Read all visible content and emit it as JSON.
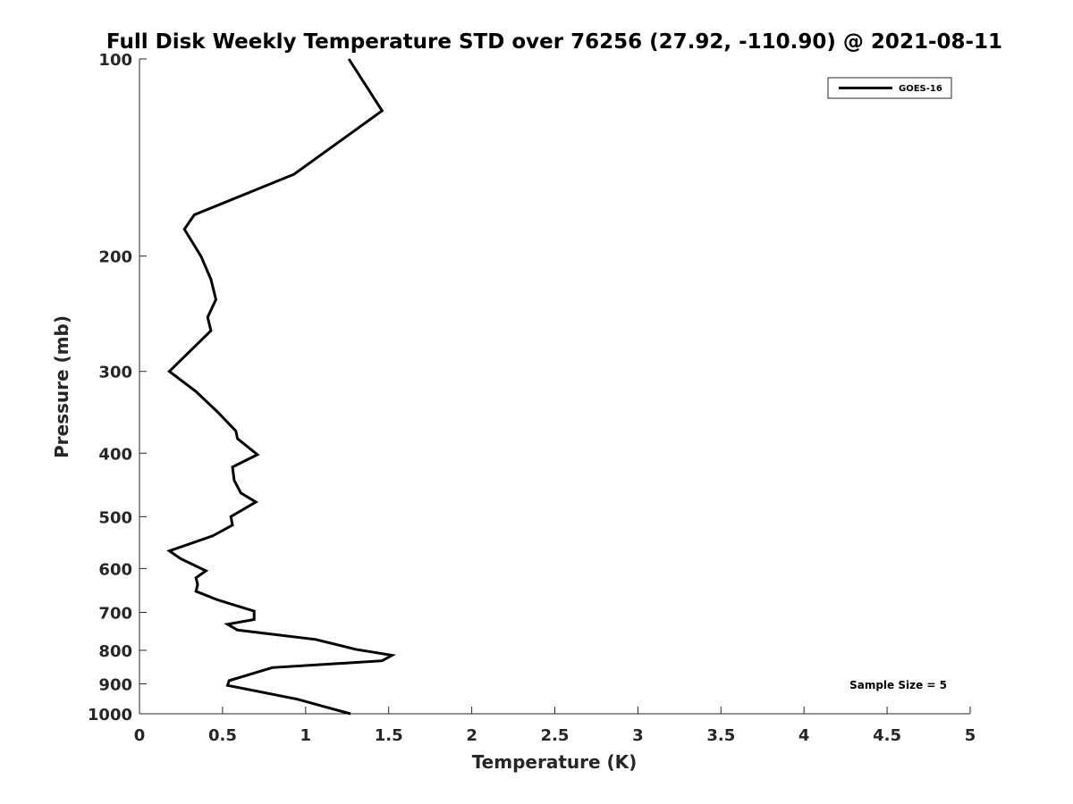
{
  "chart_data": {
    "type": "line",
    "title": "Full Disk Weekly Temperature STD over 76256 (27.92, -110.90) @ 2021-08-11",
    "xlabel": "Temperature (K)",
    "ylabel": "Pressure (mb)",
    "xlim": [
      0,
      5
    ],
    "ylim": [
      100,
      1000
    ],
    "y_scale": "log",
    "y_reversed": true,
    "x_ticks": [
      "0",
      "0.5",
      "1",
      "1.5",
      "2",
      "2.5",
      "3",
      "3.5",
      "4",
      "4.5",
      "5"
    ],
    "y_ticks": [
      "100",
      "200",
      "300",
      "400",
      "500",
      "600",
      "700",
      "800",
      "900",
      "1000"
    ],
    "legend_position": "top-right",
    "grid": false,
    "annotation": "Sample Size = 5",
    "series": [
      {
        "name": "GOES-16",
        "color": "#000000",
        "x": [
          1.26,
          1.46,
          0.93,
          0.33,
          0.27,
          0.37,
          0.43,
          0.46,
          0.41,
          0.43,
          0.18,
          0.34,
          0.47,
          0.58,
          0.59,
          0.71,
          0.56,
          0.57,
          0.61,
          0.7,
          0.55,
          0.56,
          0.44,
          0.18,
          0.25,
          0.4,
          0.34,
          0.35,
          0.34,
          0.47,
          0.69,
          0.69,
          0.53,
          0.59,
          1.06,
          1.3,
          1.52,
          1.46,
          0.8,
          0.54,
          0.53,
          0.95,
          1.27
        ],
        "y": [
          100,
          120,
          150,
          173,
          182,
          200,
          217,
          233,
          248,
          260,
          300,
          322,
          346,
          370,
          380,
          402,
          420,
          440,
          460,
          475,
          500,
          515,
          535,
          564,
          580,
          605,
          620,
          635,
          650,
          670,
          697,
          718,
          730,
          745,
          770,
          797,
          814,
          830,
          850,
          890,
          905,
          950,
          1000
        ]
      }
    ]
  }
}
